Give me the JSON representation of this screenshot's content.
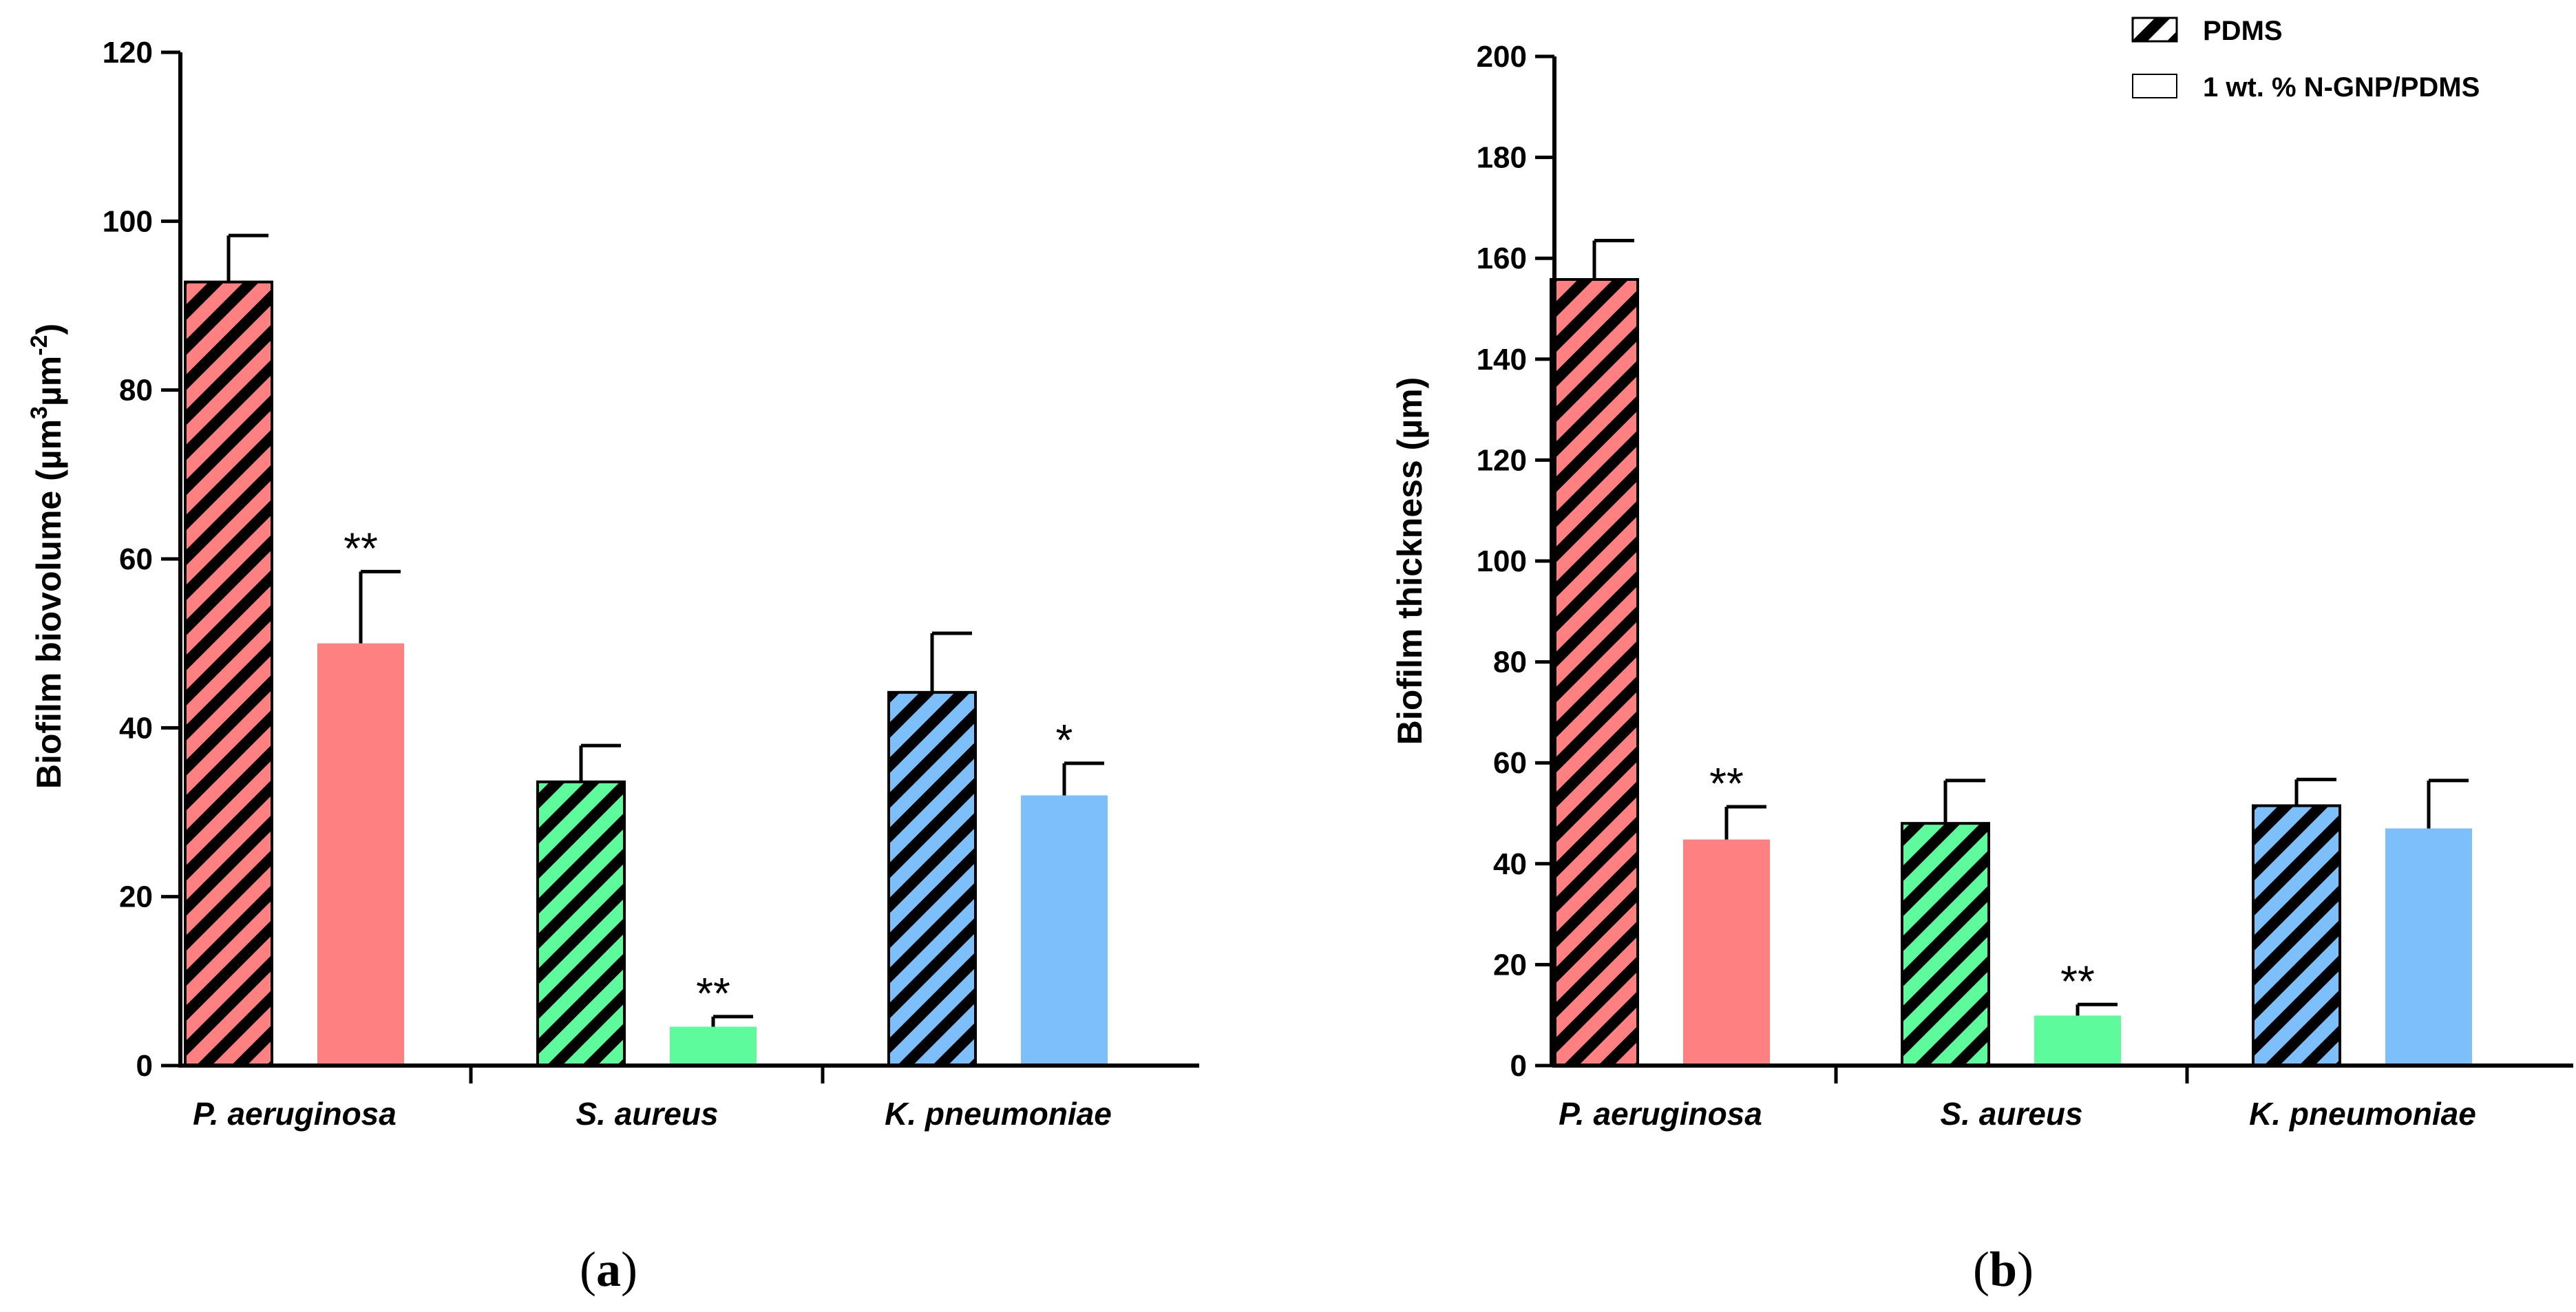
{
  "colors": {
    "P. aeruginosa": "#FF8080",
    "S. aureus": "#5DFB9C",
    "K. pneumoniae": "#7DBFFB"
  },
  "legend": [
    {
      "label": "PDMS",
      "pattern": "hatched"
    },
    {
      "label": "1 wt. % N-GNP/PDMS",
      "pattern": "solid"
    }
  ],
  "chart_data": [
    {
      "type": "bar",
      "panel_label": "a",
      "title": "",
      "xlabel": "",
      "ylabel": "Biofilm biovolume (µm³µm⁻²)",
      "ylabel_parts": {
        "prefix": "Biofilm biovolume (",
        "unit": "µm",
        "sup1": "3",
        "unit2": "µm",
        "sup2": "-2",
        "suffix": ")"
      },
      "ylim": [
        0,
        120
      ],
      "yticks": [
        0,
        20,
        40,
        60,
        80,
        100,
        120
      ],
      "categories": [
        "P. aeruginosa",
        "S. aureus",
        "K. pneumoniae"
      ],
      "series": [
        {
          "name": "PDMS",
          "values": [
            92.8,
            33.6,
            44.2
          ],
          "errors": [
            5.5,
            4.3,
            7.0
          ],
          "significance": [
            "",
            "",
            ""
          ]
        },
        {
          "name": "1 wt. % N-GNP/PDMS",
          "values": [
            50.0,
            4.6,
            32.0
          ],
          "errors": [
            8.5,
            1.2,
            3.8
          ],
          "significance": [
            "**",
            "**",
            "*"
          ]
        }
      ]
    },
    {
      "type": "bar",
      "panel_label": "b",
      "title": "",
      "xlabel": "",
      "ylabel": "Biofilm thickness (µm)",
      "ylim": [
        0,
        200
      ],
      "yticks": [
        0,
        20,
        40,
        60,
        80,
        100,
        120,
        140,
        160,
        180,
        200
      ],
      "categories": [
        "P. aeruginosa",
        "S. aureus",
        "K. pneumoniae"
      ],
      "series": [
        {
          "name": "PDMS",
          "values": [
            155.8,
            48.0,
            51.5
          ],
          "errors": [
            7.7,
            8.5,
            5.2
          ],
          "significance": [
            "",
            "",
            ""
          ]
        },
        {
          "name": "1 wt. % N-GNP/PDMS",
          "values": [
            44.8,
            9.9,
            47.0
          ],
          "errors": [
            6.5,
            2.2,
            9.5
          ],
          "significance": [
            "**",
            "**",
            ""
          ]
        }
      ]
    }
  ]
}
